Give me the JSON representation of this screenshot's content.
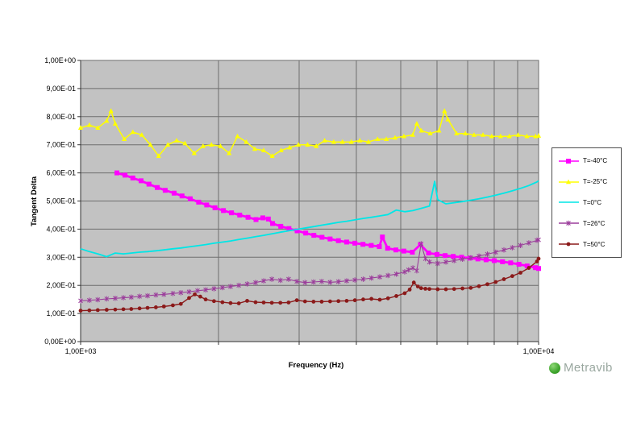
{
  "logo": {
    "text": "Metravib",
    "icon_color": "#3fa52e",
    "text_color": "#99a79f"
  },
  "chart_data": {
    "type": "line",
    "title": "",
    "xlabel": "Frequency (Hz)",
    "ylabel": "Tangent Delta",
    "x_scale": "log",
    "xlim": [
      1000,
      10000
    ],
    "ylim": [
      0,
      1
    ],
    "grid": true,
    "plot_bg": "#c2c2c2",
    "grid_color": "#6e6e6e",
    "axis_color": "#333333",
    "legend_position": "right-outside",
    "x_tick_labels": [
      {
        "value": 1000,
        "label": "1,00E+03"
      },
      {
        "value": 10000,
        "label": "1,00E+04"
      }
    ],
    "x_gridlines": [
      2000,
      3000,
      4000,
      5000,
      6000,
      7000,
      8000,
      9000
    ],
    "y_ticks": [
      {
        "value": 0.0,
        "label": "0,00E+00"
      },
      {
        "value": 0.1,
        "label": "1,00E-01"
      },
      {
        "value": 0.2,
        "label": "2,00E-01"
      },
      {
        "value": 0.3,
        "label": "3,00E-01"
      },
      {
        "value": 0.4,
        "label": "4,00E-01"
      },
      {
        "value": 0.5,
        "label": "5,00E-01"
      },
      {
        "value": 0.6,
        "label": "6,00E-01"
      },
      {
        "value": 0.7,
        "label": "7,00E-01"
      },
      {
        "value": 0.8,
        "label": "8,00E-01"
      },
      {
        "value": 0.9,
        "label": "9,00E-01"
      },
      {
        "value": 1.0,
        "label": "1,00E+00"
      }
    ],
    "series": [
      {
        "name": "T=-40°C",
        "color": "#FF00FF",
        "marker": "square",
        "line_width": 2.8,
        "points": [
          [
            1200,
            0.6
          ],
          [
            1250,
            0.592
          ],
          [
            1300,
            0.582
          ],
          [
            1355,
            0.572
          ],
          [
            1410,
            0.56
          ],
          [
            1470,
            0.548
          ],
          [
            1530,
            0.538
          ],
          [
            1600,
            0.528
          ],
          [
            1665,
            0.518
          ],
          [
            1735,
            0.508
          ],
          [
            1810,
            0.496
          ],
          [
            1885,
            0.486
          ],
          [
            1965,
            0.476
          ],
          [
            2050,
            0.466
          ],
          [
            2135,
            0.458
          ],
          [
            2225,
            0.45
          ],
          [
            2320,
            0.442
          ],
          [
            2415,
            0.434
          ],
          [
            2500,
            0.44
          ],
          [
            2570,
            0.436
          ],
          [
            2625,
            0.42
          ],
          [
            2735,
            0.41
          ],
          [
            2850,
            0.402
          ],
          [
            2970,
            0.394
          ],
          [
            3100,
            0.386
          ],
          [
            3230,
            0.378
          ],
          [
            3365,
            0.371
          ],
          [
            3505,
            0.365
          ],
          [
            3655,
            0.359
          ],
          [
            3810,
            0.354
          ],
          [
            3970,
            0.35
          ],
          [
            4135,
            0.346
          ],
          [
            4310,
            0.342
          ],
          [
            4490,
            0.338
          ],
          [
            4560,
            0.372
          ],
          [
            4680,
            0.332
          ],
          [
            4880,
            0.326
          ],
          [
            5080,
            0.322
          ],
          [
            5300,
            0.318
          ],
          [
            5520,
            0.345
          ],
          [
            5750,
            0.315
          ],
          [
            6000,
            0.31
          ],
          [
            6250,
            0.306
          ],
          [
            6510,
            0.303
          ],
          [
            6790,
            0.3
          ],
          [
            7070,
            0.297
          ],
          [
            7370,
            0.294
          ],
          [
            7680,
            0.291
          ],
          [
            8000,
            0.288
          ],
          [
            8340,
            0.284
          ],
          [
            8690,
            0.28
          ],
          [
            9060,
            0.275
          ],
          [
            9440,
            0.269
          ],
          [
            9840,
            0.263
          ],
          [
            10000,
            0.26
          ]
        ]
      },
      {
        "name": "T=-25°C",
        "color": "#FFFF00",
        "marker": "triangle",
        "line_width": 1.5,
        "points": [
          [
            1000,
            0.76
          ],
          [
            1045,
            0.77
          ],
          [
            1090,
            0.76
          ],
          [
            1140,
            0.785
          ],
          [
            1165,
            0.82
          ],
          [
            1190,
            0.775
          ],
          [
            1245,
            0.72
          ],
          [
            1300,
            0.745
          ],
          [
            1360,
            0.735
          ],
          [
            1420,
            0.7
          ],
          [
            1480,
            0.66
          ],
          [
            1550,
            0.7
          ],
          [
            1620,
            0.715
          ],
          [
            1690,
            0.705
          ],
          [
            1770,
            0.67
          ],
          [
            1850,
            0.695
          ],
          [
            1930,
            0.7
          ],
          [
            2020,
            0.695
          ],
          [
            2110,
            0.67
          ],
          [
            2200,
            0.73
          ],
          [
            2300,
            0.71
          ],
          [
            2400,
            0.685
          ],
          [
            2510,
            0.68
          ],
          [
            2620,
            0.66
          ],
          [
            2740,
            0.68
          ],
          [
            2860,
            0.69
          ],
          [
            2990,
            0.7
          ],
          [
            3130,
            0.7
          ],
          [
            3270,
            0.695
          ],
          [
            3410,
            0.715
          ],
          [
            3570,
            0.71
          ],
          [
            3730,
            0.71
          ],
          [
            3900,
            0.71
          ],
          [
            4070,
            0.715
          ],
          [
            4250,
            0.71
          ],
          [
            4450,
            0.72
          ],
          [
            4650,
            0.72
          ],
          [
            4860,
            0.725
          ],
          [
            5080,
            0.73
          ],
          [
            5310,
            0.735
          ],
          [
            5420,
            0.775
          ],
          [
            5550,
            0.75
          ],
          [
            5800,
            0.74
          ],
          [
            6060,
            0.75
          ],
          [
            6230,
            0.82
          ],
          [
            6340,
            0.79
          ],
          [
            6620,
            0.74
          ],
          [
            6920,
            0.74
          ],
          [
            7230,
            0.735
          ],
          [
            7560,
            0.735
          ],
          [
            7900,
            0.73
          ],
          [
            8260,
            0.73
          ],
          [
            8630,
            0.73
          ],
          [
            9020,
            0.735
          ],
          [
            9430,
            0.73
          ],
          [
            9850,
            0.73
          ],
          [
            10000,
            0.732
          ]
        ]
      },
      {
        "name": "T=0°C",
        "color": "#00E6E6",
        "marker": "none",
        "line_width": 1.8,
        "points": [
          [
            1000,
            0.33
          ],
          [
            1045,
            0.32
          ],
          [
            1090,
            0.312
          ],
          [
            1140,
            0.302
          ],
          [
            1190,
            0.315
          ],
          [
            1240,
            0.312
          ],
          [
            1290,
            0.315
          ],
          [
            1345,
            0.318
          ],
          [
            1400,
            0.32
          ],
          [
            1460,
            0.323
          ],
          [
            1520,
            0.326
          ],
          [
            1590,
            0.33
          ],
          [
            1655,
            0.333
          ],
          [
            1725,
            0.337
          ],
          [
            1800,
            0.341
          ],
          [
            1875,
            0.345
          ],
          [
            1955,
            0.35
          ],
          [
            2040,
            0.354
          ],
          [
            2125,
            0.358
          ],
          [
            2215,
            0.363
          ],
          [
            2310,
            0.368
          ],
          [
            2410,
            0.373
          ],
          [
            2510,
            0.378
          ],
          [
            2615,
            0.383
          ],
          [
            2730,
            0.389
          ],
          [
            2845,
            0.394
          ],
          [
            2965,
            0.399
          ],
          [
            3090,
            0.404
          ],
          [
            3225,
            0.409
          ],
          [
            3360,
            0.414
          ],
          [
            3505,
            0.419
          ],
          [
            3655,
            0.424
          ],
          [
            3810,
            0.428
          ],
          [
            3970,
            0.433
          ],
          [
            4140,
            0.438
          ],
          [
            4315,
            0.442
          ],
          [
            4500,
            0.447
          ],
          [
            4690,
            0.452
          ],
          [
            4890,
            0.468
          ],
          [
            5100,
            0.462
          ],
          [
            5315,
            0.466
          ],
          [
            5540,
            0.474
          ],
          [
            5775,
            0.482
          ],
          [
            5930,
            0.57
          ],
          [
            6020,
            0.505
          ],
          [
            6275,
            0.49
          ],
          [
            6540,
            0.494
          ],
          [
            6820,
            0.498
          ],
          [
            7110,
            0.503
          ],
          [
            7410,
            0.508
          ],
          [
            7730,
            0.514
          ],
          [
            8060,
            0.521
          ],
          [
            8400,
            0.528
          ],
          [
            8760,
            0.536
          ],
          [
            9130,
            0.545
          ],
          [
            9520,
            0.555
          ],
          [
            9920,
            0.568
          ],
          [
            10000,
            0.572
          ]
        ]
      },
      {
        "name": "T=26°C",
        "color": "#9B3D9B",
        "marker": "star",
        "line_width": 1.1,
        "points": [
          [
            1000,
            0.145
          ],
          [
            1045,
            0.147
          ],
          [
            1090,
            0.149
          ],
          [
            1140,
            0.152
          ],
          [
            1190,
            0.154
          ],
          [
            1240,
            0.156
          ],
          [
            1290,
            0.158
          ],
          [
            1345,
            0.161
          ],
          [
            1400,
            0.163
          ],
          [
            1460,
            0.166
          ],
          [
            1520,
            0.168
          ],
          [
            1590,
            0.171
          ],
          [
            1655,
            0.174
          ],
          [
            1725,
            0.177
          ],
          [
            1800,
            0.181
          ],
          [
            1875,
            0.184
          ],
          [
            1955,
            0.188
          ],
          [
            2040,
            0.192
          ],
          [
            2125,
            0.196
          ],
          [
            2215,
            0.2
          ],
          [
            2310,
            0.205
          ],
          [
            2410,
            0.21
          ],
          [
            2510,
            0.216
          ],
          [
            2615,
            0.222
          ],
          [
            2730,
            0.218
          ],
          [
            2845,
            0.222
          ],
          [
            2965,
            0.214
          ],
          [
            3090,
            0.21
          ],
          [
            3225,
            0.212
          ],
          [
            3360,
            0.214
          ],
          [
            3505,
            0.211
          ],
          [
            3655,
            0.213
          ],
          [
            3810,
            0.216
          ],
          [
            3970,
            0.219
          ],
          [
            4140,
            0.222
          ],
          [
            4315,
            0.226
          ],
          [
            4500,
            0.23
          ],
          [
            4690,
            0.235
          ],
          [
            4890,
            0.24
          ],
          [
            5100,
            0.248
          ],
          [
            5200,
            0.255
          ],
          [
            5315,
            0.262
          ],
          [
            5420,
            0.252
          ],
          [
            5540,
            0.348
          ],
          [
            5660,
            0.295
          ],
          [
            5775,
            0.283
          ],
          [
            6020,
            0.278
          ],
          [
            6275,
            0.283
          ],
          [
            6540,
            0.288
          ],
          [
            6820,
            0.293
          ],
          [
            7110,
            0.298
          ],
          [
            7410,
            0.304
          ],
          [
            7730,
            0.311
          ],
          [
            8060,
            0.318
          ],
          [
            8400,
            0.326
          ],
          [
            8760,
            0.334
          ],
          [
            9130,
            0.342
          ],
          [
            9520,
            0.351
          ],
          [
            9920,
            0.36
          ],
          [
            10000,
            0.362
          ]
        ]
      },
      {
        "name": "T=50°C",
        "color": "#8B1A1A",
        "marker": "circle",
        "line_width": 1.4,
        "points": [
          [
            1000,
            0.11
          ],
          [
            1045,
            0.111
          ],
          [
            1090,
            0.112
          ],
          [
            1140,
            0.113
          ],
          [
            1190,
            0.114
          ],
          [
            1240,
            0.115
          ],
          [
            1290,
            0.116
          ],
          [
            1345,
            0.118
          ],
          [
            1400,
            0.12
          ],
          [
            1460,
            0.122
          ],
          [
            1520,
            0.125
          ],
          [
            1590,
            0.129
          ],
          [
            1655,
            0.134
          ],
          [
            1725,
            0.155
          ],
          [
            1775,
            0.168
          ],
          [
            1825,
            0.16
          ],
          [
            1875,
            0.15
          ],
          [
            1955,
            0.144
          ],
          [
            2040,
            0.14
          ],
          [
            2125,
            0.137
          ],
          [
            2215,
            0.136
          ],
          [
            2310,
            0.145
          ],
          [
            2410,
            0.14
          ],
          [
            2510,
            0.139
          ],
          [
            2615,
            0.138
          ],
          [
            2730,
            0.138
          ],
          [
            2845,
            0.139
          ],
          [
            2965,
            0.147
          ],
          [
            3090,
            0.143
          ],
          [
            3225,
            0.142
          ],
          [
            3360,
            0.142
          ],
          [
            3505,
            0.143
          ],
          [
            3655,
            0.144
          ],
          [
            3810,
            0.145
          ],
          [
            3970,
            0.147
          ],
          [
            4140,
            0.15
          ],
          [
            4315,
            0.152
          ],
          [
            4500,
            0.149
          ],
          [
            4690,
            0.154
          ],
          [
            4890,
            0.162
          ],
          [
            5100,
            0.172
          ],
          [
            5230,
            0.185
          ],
          [
            5340,
            0.21
          ],
          [
            5450,
            0.196
          ],
          [
            5540,
            0.19
          ],
          [
            5660,
            0.188
          ],
          [
            5775,
            0.187
          ],
          [
            6020,
            0.186
          ],
          [
            6275,
            0.186
          ],
          [
            6540,
            0.187
          ],
          [
            6820,
            0.189
          ],
          [
            7110,
            0.191
          ],
          [
            7410,
            0.197
          ],
          [
            7730,
            0.204
          ],
          [
            8060,
            0.212
          ],
          [
            8400,
            0.222
          ],
          [
            8760,
            0.233
          ],
          [
            9130,
            0.245
          ],
          [
            9520,
            0.262
          ],
          [
            9920,
            0.285
          ],
          [
            10000,
            0.295
          ]
        ]
      }
    ]
  }
}
